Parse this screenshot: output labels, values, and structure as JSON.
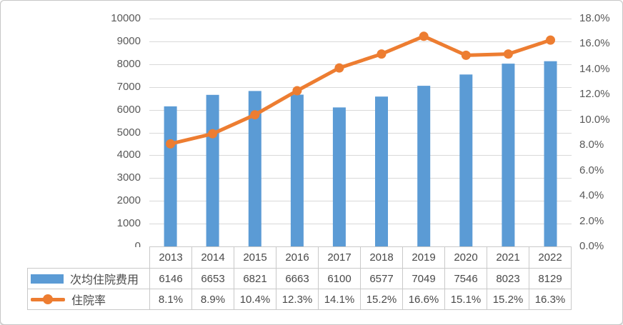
{
  "chart_data": {
    "type": "combo-bar-line",
    "title": "",
    "categories": [
      "2013",
      "2014",
      "2015",
      "2016",
      "2017",
      "2018",
      "2019",
      "2020",
      "2021",
      "2022"
    ],
    "series": [
      {
        "name": "次均住院费用",
        "chart_type": "bar",
        "axis": "left",
        "values": [
          6146,
          6653,
          6821,
          6663,
          6100,
          6577,
          7049,
          7546,
          8023,
          8129
        ],
        "value_labels": [
          "6146",
          "6653",
          "6821",
          "6663",
          "6100",
          "6577",
          "7049",
          "7546",
          "8023",
          "8129"
        ],
        "color": "#5B9BD5"
      },
      {
        "name": "住院率",
        "chart_type": "line",
        "axis": "right",
        "values": [
          8.1,
          8.9,
          10.4,
          12.3,
          14.1,
          15.2,
          16.6,
          15.1,
          15.2,
          16.3
        ],
        "value_labels": [
          "8.1%",
          "8.9%",
          "10.4%",
          "12.3%",
          "14.1%",
          "15.2%",
          "16.6%",
          "15.1%",
          "15.2%",
          "16.3%"
        ],
        "color": "#ED7D31"
      }
    ],
    "left_axis": {
      "min": 0,
      "max": 10000,
      "step": 1000,
      "tick_labels": [
        "0",
        "1000",
        "2000",
        "3000",
        "4000",
        "5000",
        "6000",
        "7000",
        "8000",
        "9000",
        "10000"
      ]
    },
    "right_axis": {
      "min": 0,
      "max": 18,
      "step": 2,
      "tick_labels": [
        "0.0%",
        "2.0%",
        "4.0%",
        "6.0%",
        "8.0%",
        "10.0%",
        "12.0%",
        "14.0%",
        "16.0%",
        "18.0%"
      ]
    },
    "grid": true,
    "legend_position": "data-table-left"
  },
  "colors": {
    "bar": "#5B9BD5",
    "line": "#ED7D31",
    "gridline": "#D9D9D9",
    "table_border": "#C9C9C9",
    "axis_text": "#595959",
    "table_text": "#494949",
    "card_border": "#C6C6C6",
    "background": "#FFFFFF"
  }
}
